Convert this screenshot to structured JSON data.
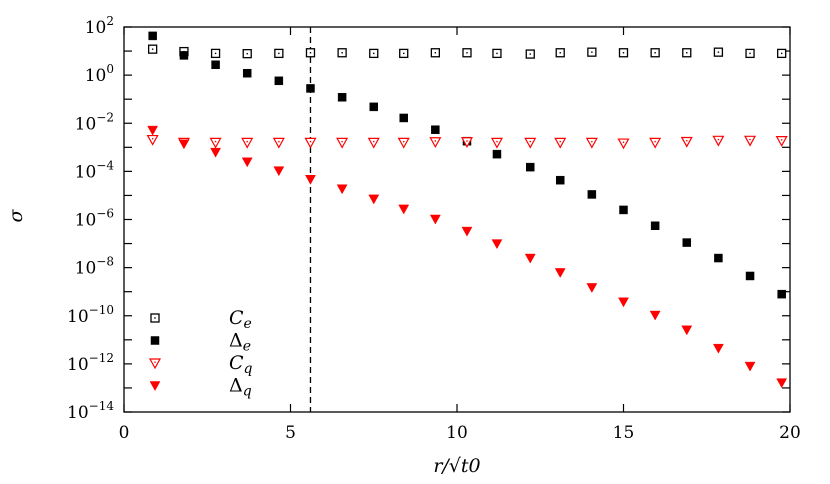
{
  "chart_data": {
    "type": "scatter",
    "xlabel": "r/√t0",
    "ylabel": "σ",
    "xlim": [
      0,
      20
    ],
    "ylim": [
      1e-14,
      100
    ],
    "y_scale": "log",
    "x_ticks": [
      0,
      5,
      10,
      15,
      20
    ],
    "y_tick_exponents": [
      2,
      0,
      -2,
      -4,
      -6,
      -8,
      -10,
      -12,
      -14
    ],
    "grid": false,
    "legend_position": "bottom-left",
    "vertical_line": {
      "x": 5.6,
      "style": "dashed"
    },
    "x": [
      0.86,
      1.8,
      2.75,
      3.7,
      4.65,
      5.6,
      6.55,
      7.5,
      8.4,
      9.35,
      10.3,
      11.2,
      12.2,
      13.1,
      14.05,
      15.0,
      15.95,
      16.9,
      17.85,
      18.8,
      19.75
    ],
    "series": [
      {
        "name": "Ce",
        "label_base": "C",
        "label_sub": "e",
        "marker": "open-square",
        "color": "#000000",
        "values": [
          12,
          9.5,
          8,
          7.8,
          8,
          8.5,
          8.5,
          8,
          8,
          8.5,
          8.5,
          8,
          7.5,
          8.5,
          9,
          8.5,
          8.5,
          8.5,
          9,
          8,
          8
        ]
      },
      {
        "name": "Δe",
        "label_base": "Δ",
        "label_sub": "e",
        "marker": "filled-square",
        "color": "#000000",
        "values": [
          42.7,
          6.6,
          2.7,
          1.2,
          0.58,
          0.28,
          0.12,
          0.048,
          0.0166,
          0.0054,
          0.0018,
          0.00052,
          0.00015,
          4.3e-05,
          1.1e-05,
          2.5e-06,
          5.5e-07,
          1.1e-07,
          2.5e-08,
          4.5e-09,
          7.9e-10
        ]
      },
      {
        "name": "Cq",
        "label_base": "C",
        "label_sub": "q",
        "marker": "open-triangle-down",
        "color": "#ff0000",
        "values": [
          0.0021,
          0.0016,
          0.0016,
          0.0016,
          0.0016,
          0.0016,
          0.0016,
          0.0016,
          0.0016,
          0.0017,
          0.0017,
          0.0016,
          0.0016,
          0.0016,
          0.0016,
          0.0015,
          0.0016,
          0.00175,
          0.00195,
          0.00195,
          0.0019
        ]
      },
      {
        "name": "Δq",
        "label_base": "Δ",
        "label_sub": "q",
        "marker": "filled-triangle-down",
        "color": "#ff0000",
        "values": [
          0.0052,
          0.0014,
          0.00063,
          0.00025,
          0.000107,
          4.7e-05,
          1.9e-05,
          7.2e-06,
          2.75e-06,
          1.05e-06,
          3.3e-07,
          1e-07,
          2.5e-08,
          6.3e-09,
          1.5e-09,
          3.8e-10,
          1.07e-10,
          2.6e-11,
          4.5e-12,
          8.1e-13,
          1.66e-13
        ]
      }
    ]
  }
}
